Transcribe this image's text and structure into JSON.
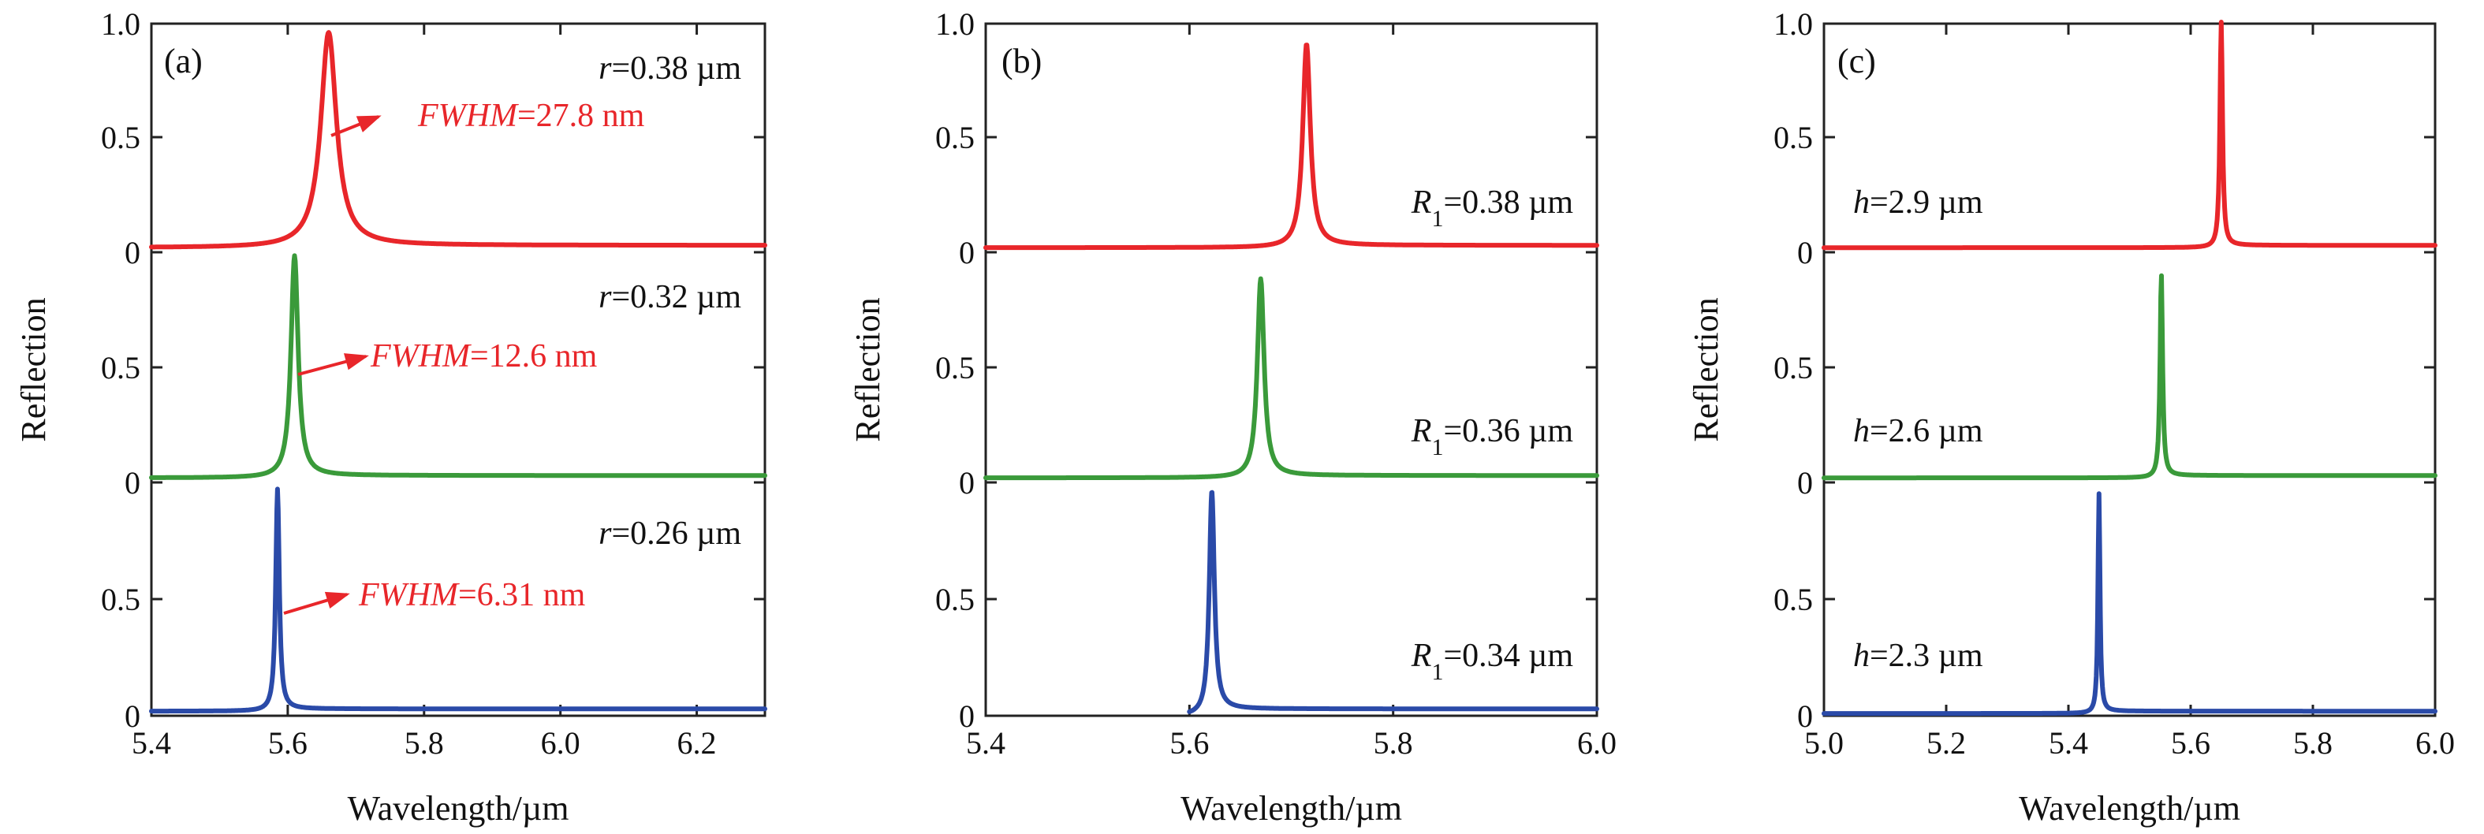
{
  "colors": {
    "red": "#e8262a",
    "green": "#3a9a3a",
    "blue": "#2a4aa8",
    "anno_red": "#e8262a"
  },
  "chart_data": [
    {
      "type": "line",
      "panel": "(a)",
      "xlabel": "Wavelength/µm",
      "ylabel": "Reflection",
      "xlim": [
        5.4,
        6.3
      ],
      "xticks": [
        "5.4",
        "5.6",
        "5.8",
        "6.0",
        "6.2"
      ],
      "xtick_values": [
        5.4,
        5.6,
        5.8,
        6.0,
        6.2
      ],
      "stack_tick_labels": [
        "1.0",
        "0.5",
        "0",
        "0.5",
        "0",
        "0.5",
        "0"
      ],
      "series": [
        {
          "color": "red",
          "label": {
            "italic": "r",
            "text": "=0.38 µm"
          },
          "peak_x": 5.66,
          "peak_y": 0.95,
          "width": 0.0278,
          "baseline": 0.02,
          "tail": 0.03,
          "start_x": 5.4
        },
        {
          "color": "green",
          "label": {
            "italic": "r",
            "text": "=0.32 µm"
          },
          "peak_x": 5.61,
          "peak_y": 0.98,
          "width": 0.0126,
          "baseline": 0.02,
          "tail": 0.03,
          "start_x": 5.4
        },
        {
          "color": "blue",
          "label": {
            "italic": "r",
            "text": "=0.26 µm"
          },
          "peak_x": 5.585,
          "peak_y": 0.98,
          "width": 0.00631,
          "baseline": 0.02,
          "tail": 0.03,
          "start_x": 5.4
        }
      ],
      "annotations": [
        {
          "italic": "FWHM",
          "text": "=27.8 nm"
        },
        {
          "italic": "FWHM",
          "text": "=12.6 nm"
        },
        {
          "italic": "FWHM",
          "text": "=6.31 nm"
        }
      ]
    },
    {
      "type": "line",
      "panel": "(b)",
      "xlabel": "Wavelength/µm",
      "ylabel": "Reflection",
      "xlim": [
        5.4,
        6.0
      ],
      "xticks": [
        "5.4",
        "5.6",
        "5.8",
        "6.0"
      ],
      "xtick_values": [
        5.4,
        5.6,
        5.8,
        6.0
      ],
      "stack_tick_labels": [
        "1.0",
        "0.5",
        "0",
        "0.5",
        "0",
        "0.5",
        "0"
      ],
      "series": [
        {
          "color": "red",
          "label": {
            "italic": "R",
            "sub": "1",
            "text": "=0.38 µm"
          },
          "peak_x": 5.715,
          "peak_y": 0.9,
          "width": 0.009,
          "baseline": 0.02,
          "tail": 0.03,
          "start_x": 5.4
        },
        {
          "color": "green",
          "label": {
            "italic": "R",
            "sub": "1",
            "text": "=0.36 µm"
          },
          "peak_x": 5.67,
          "peak_y": 0.88,
          "width": 0.008,
          "baseline": 0.02,
          "tail": 0.03,
          "start_x": 5.4
        },
        {
          "color": "blue",
          "label": {
            "italic": "R",
            "sub": "1",
            "text": "=0.34 µm"
          },
          "peak_x": 5.622,
          "peak_y": 0.96,
          "width": 0.006,
          "baseline": 0.0,
          "tail": 0.03,
          "start_x": 5.6
        }
      ],
      "annotations": []
    },
    {
      "type": "line",
      "panel": "(c)",
      "xlabel": "Wavelength/µm",
      "ylabel": "Reflection",
      "xlim": [
        5.0,
        6.0
      ],
      "xticks": [
        "5.0",
        "5.2",
        "5.4",
        "5.6",
        "5.8",
        "6.0"
      ],
      "xtick_values": [
        5.0,
        5.2,
        5.4,
        5.6,
        5.8,
        6.0
      ],
      "stack_tick_labels": [
        "1.0",
        "0.5",
        "0",
        "0.5",
        "0",
        "0.5",
        "0"
      ],
      "series": [
        {
          "color": "red",
          "label": {
            "italic": "h",
            "text": "=2.9 µm"
          },
          "peak_x": 5.65,
          "peak_y": 1.0,
          "width": 0.005,
          "baseline": 0.02,
          "tail": 0.03,
          "start_x": 5.0
        },
        {
          "color": "green",
          "label": {
            "italic": "h",
            "text": "=2.6 µm"
          },
          "peak_x": 5.552,
          "peak_y": 0.9,
          "width": 0.005,
          "baseline": 0.02,
          "tail": 0.03,
          "start_x": 5.0
        },
        {
          "color": "blue",
          "label": {
            "italic": "h",
            "text": "=2.3 µm"
          },
          "peak_x": 5.45,
          "peak_y": 0.96,
          "width": 0.004,
          "baseline": 0.01,
          "tail": 0.02,
          "start_x": 5.0
        }
      ],
      "annotations": []
    }
  ]
}
